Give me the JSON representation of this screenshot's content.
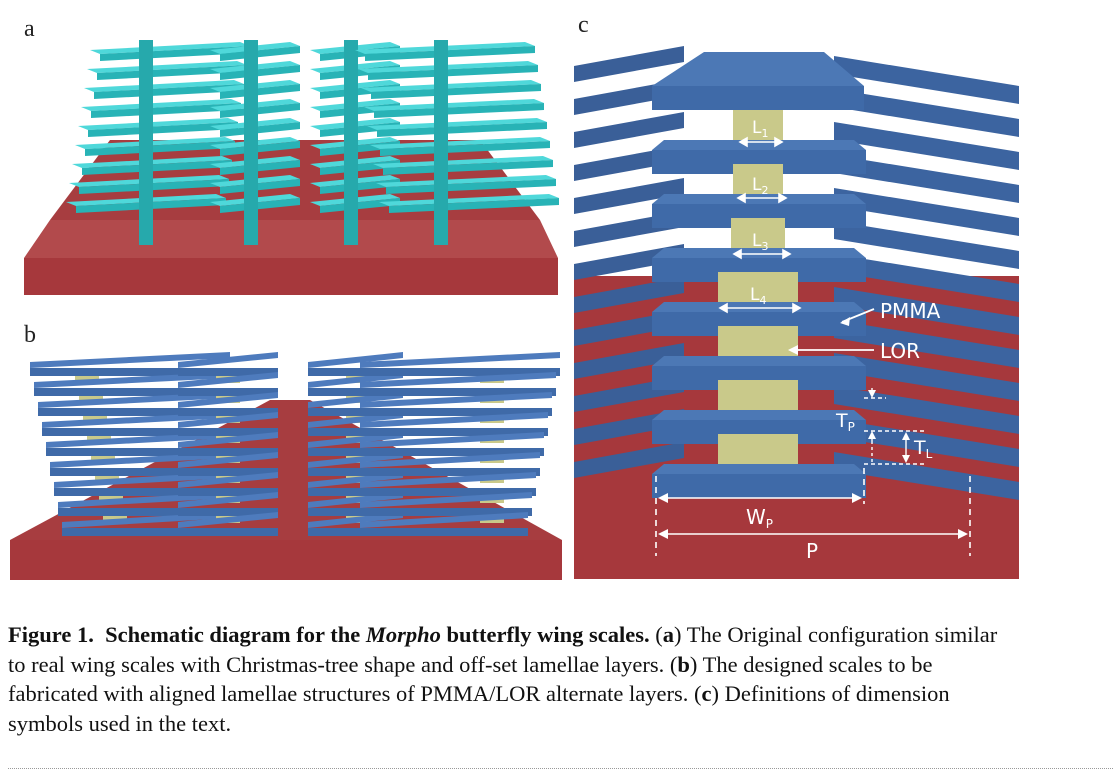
{
  "panels": {
    "a": "a",
    "b": "b",
    "c": "c"
  },
  "labels": {
    "L1": "L",
    "L1_sub": "1",
    "L2": "L",
    "L2_sub": "2",
    "L3": "L",
    "L3_sub": "3",
    "L4": "L",
    "L4_sub": "4",
    "pmma": "PMMA",
    "lor": "LOR",
    "tp": "T",
    "tp_sub": "P",
    "tl": "T",
    "tl_sub": "L",
    "wp": "W",
    "wp_sub": "P",
    "p": "P"
  },
  "caption": {
    "fig": "Figure 1.",
    "title_pre": "Schematic diagram for the ",
    "title_italic": "Morpho",
    "title_post": " butterfly wing scales.",
    "a_open": " (",
    "a_letter": "a",
    "a_text": ") The Original configuration similar",
    "line2_pre": "to real wing scales with Christmas-tree shape and off-set lamellae layers. (",
    "b_letter": "b",
    "line2_post": ") The designed scales to be",
    "line3": "fabricated with aligned lamellae structures of PMMA/LOR alternate layers. (",
    "c_letter": "c",
    "line3_post": ") Definitions of dimension",
    "line4": "symbols used in the text."
  },
  "colors": {
    "substrate": "#a6383c",
    "cyan": "#2ec4c7",
    "blue": "#3f6aa8",
    "lor": "#c9c98a",
    "white": "#ffffff"
  }
}
